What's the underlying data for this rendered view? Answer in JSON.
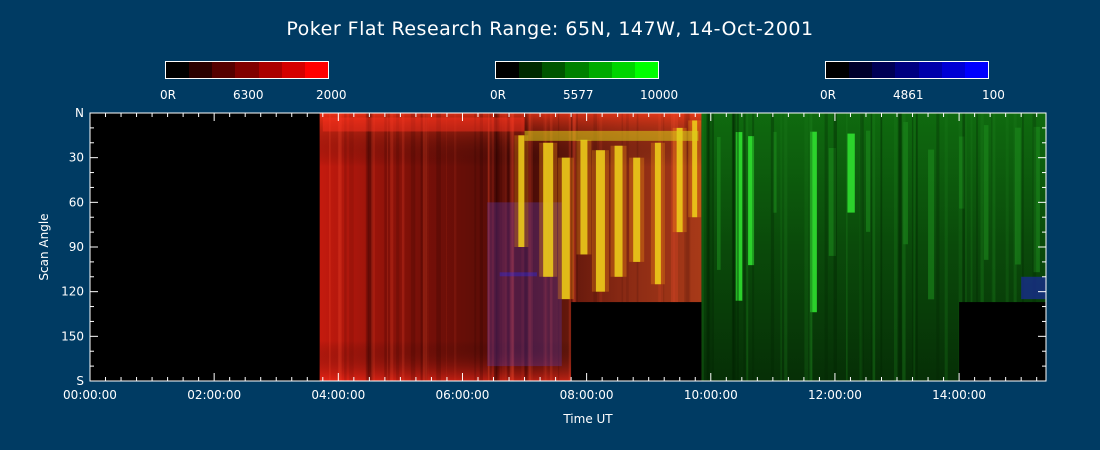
{
  "title": "Poker Flat Research Range: 65N, 147W, 14-Oct-2001",
  "colorbars": [
    {
      "name": "6300",
      "min_label": "0R",
      "mid_label": "6300",
      "max_label": "2000",
      "colors": [
        "#000000",
        "#2a0000",
        "#550000",
        "#800000",
        "#aa0000",
        "#d40000",
        "#ff0000"
      ]
    },
    {
      "name": "5577",
      "min_label": "0R",
      "mid_label": "5577",
      "max_label": "10000",
      "colors": [
        "#000000",
        "#002a00",
        "#005500",
        "#008000",
        "#00aa00",
        "#00d400",
        "#00ff00"
      ]
    },
    {
      "name": "4861",
      "min_label": "0R",
      "mid_label": "4861",
      "max_label": "100",
      "colors": [
        "#000000",
        "#00002a",
        "#000055",
        "#000080",
        "#0000aa",
        "#0000d4",
        "#0000ff"
      ]
    }
  ],
  "chart_data": {
    "type": "heatmap",
    "xlabel": "Time UT",
    "ylabel": "Scan Angle",
    "xlim_hours": [
      0,
      15.4
    ],
    "ylim_deg": [
      0,
      180
    ],
    "x_ticks": [
      "00:00:00",
      "02:00:00",
      "04:00:00",
      "06:00:00",
      "08:00:00",
      "10:00:00",
      "12:00:00",
      "14:00:00"
    ],
    "y_ticks": [
      "N",
      "30",
      "60",
      "90",
      "120",
      "150",
      "S"
    ],
    "regions": [
      {
        "from_hour": 0.0,
        "to_hour": 3.7,
        "description_color": "#000000"
      },
      {
        "from_hour": 3.7,
        "to_hour": 9.85,
        "description_color": "#8a1a0a"
      },
      {
        "from_hour": 9.85,
        "to_hour": 15.4,
        "description_color": "#0b4a0b"
      }
    ],
    "masked_blocks": [
      {
        "from_hour": 7.75,
        "to_hour": 9.85,
        "from_deg": 127,
        "to_deg": 180
      },
      {
        "from_hour": 14.0,
        "to_hour": 15.4,
        "from_deg": 127,
        "to_deg": 180
      }
    ],
    "grid": false
  }
}
